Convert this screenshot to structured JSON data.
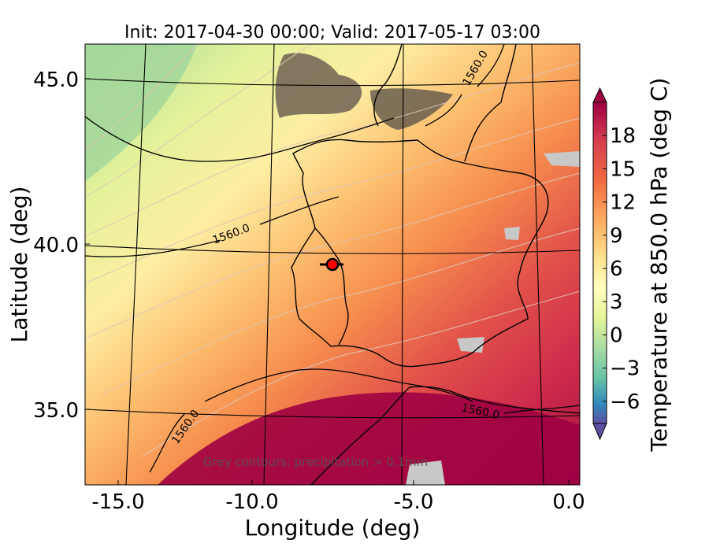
{
  "chart_data": {
    "type": "heatmap",
    "title": "Init: 2017-04-30 00:00; Valid: 2017-05-17 03:00",
    "xlabel": "Longitude (deg)",
    "ylabel": "Latitude (deg)",
    "xlim": [
      -16.0,
      0.0
    ],
    "ylim": [
      32.7,
      46.2
    ],
    "x_ticks": [
      "-15.0",
      "-10.0",
      "-5.0",
      "0.0"
    ],
    "y_ticks": [
      "35.0",
      "40.0",
      "45.0"
    ],
    "colorbar": {
      "label": "Temperature at 850.0 hPa (deg C)",
      "range": [
        -8,
        21
      ],
      "ticks": [
        "−6",
        "−3",
        "0",
        "3",
        "6",
        "9",
        "12",
        "15",
        "18"
      ],
      "extend": "both",
      "colormap": "Spectral_r"
    },
    "contour_labels": [
      {
        "text": "1560.0",
        "lon": -9.6,
        "lat": 40.3
      },
      {
        "text": "1560.0",
        "lon": -11.9,
        "lat": 34.1
      },
      {
        "text": "1560.0",
        "lon": -2.4,
        "lat": 45.3
      },
      {
        "text": "1560.0",
        "lon": -3.1,
        "lat": 34.8
      }
    ],
    "marker": {
      "lon": -7.7,
      "lat": 39.3,
      "color": "#ff0000"
    },
    "annotation": "Grey contours: precipitation > 0.1mm"
  }
}
